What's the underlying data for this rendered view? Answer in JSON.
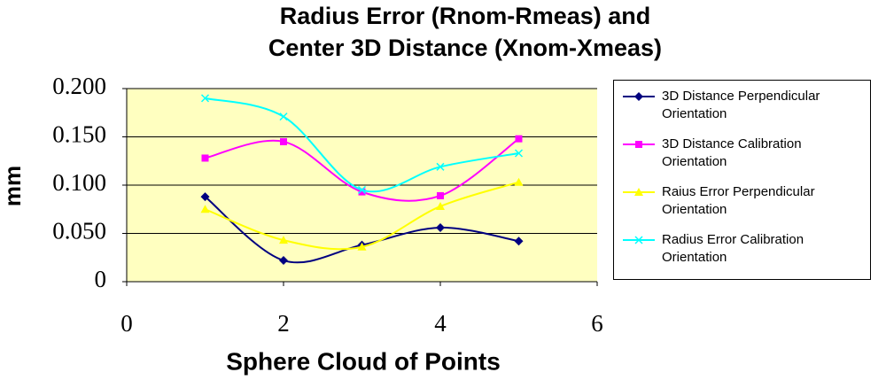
{
  "chart_data": {
    "type": "line",
    "title": "Radius Error (Rnom-Rmeas) and Center 3D Distance (Xnom-Xmeas)",
    "x_label": "Sphere Cloud of Points",
    "y_label": "mm",
    "x": [
      1,
      2,
      3,
      4,
      5
    ],
    "series": [
      {
        "name": "3D Distance Perpendicular Orientation",
        "color": "#000080",
        "marker": "diamond",
        "values": [
          0.088,
          0.022,
          0.038,
          0.056,
          0.042
        ]
      },
      {
        "name": "3D Distance Calibration Orientation",
        "color": "#ff00ff",
        "marker": "square",
        "values": [
          0.128,
          0.145,
          0.093,
          0.089,
          0.148
        ]
      },
      {
        "name": "Raius Error Perpendicular Orientation",
        "color": "#ffff00",
        "marker": "triangle",
        "values": [
          0.075,
          0.043,
          0.036,
          0.078,
          0.103
        ]
      },
      {
        "name": "Radius Error Calibration Orientation",
        "color": "#00ffff",
        "marker": "cross",
        "values": [
          0.19,
          0.171,
          0.095,
          0.119,
          0.133
        ]
      }
    ],
    "xlim": [
      0,
      6
    ],
    "xticks": [
      0,
      2,
      4,
      6
    ],
    "ylim": [
      0,
      0.2
    ],
    "yticks": [
      0,
      {
        "value": 0.05,
        "label": "0.050"
      },
      {
        "value": 0.1,
        "label": "0.100"
      },
      {
        "value": 0.15,
        "label": "0.150"
      },
      {
        "value": 0.2,
        "label": "0.200"
      }
    ],
    "grid": true,
    "smooth": true,
    "legend": "right"
  }
}
